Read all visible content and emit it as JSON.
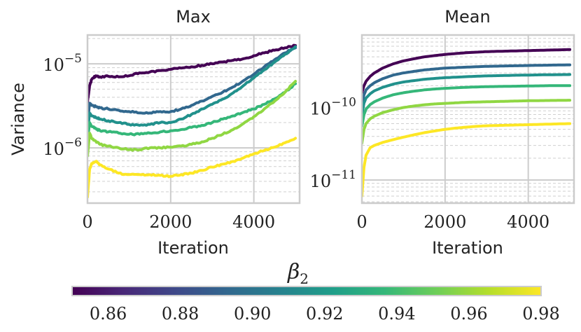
{
  "chart_data": [
    {
      "type": "line",
      "title": "Max",
      "xlabel": "Iteration",
      "ylabel": "Variance",
      "yscale": "log",
      "xlim": [
        0,
        5100
      ],
      "ylim": [
        2.2e-07,
        2.2e-05
      ],
      "xticks": [
        {
          "value": 0,
          "label": "0"
        },
        {
          "value": 2000,
          "label": "2000"
        },
        {
          "value": 4000,
          "label": "4000"
        }
      ],
      "yticks": [
        {
          "value": 1e-05,
          "base": "10",
          "exp": "−5"
        },
        {
          "value": 1e-06,
          "base": "10",
          "exp": "−6"
        }
      ],
      "x": [
        0,
        50,
        100,
        200,
        300,
        500,
        750,
        1000,
        1250,
        1500,
        1750,
        2000,
        2250,
        2500,
        2750,
        3000,
        3250,
        3500,
        3750,
        4000,
        4250,
        4500,
        4750,
        5000
      ],
      "series": [
        {
          "name": "0.86",
          "color": "#440154",
          "values": [
            3.5e-06,
            5.5e-06,
            6.5e-06,
            7.2e-06,
            7e-06,
            7.1e-06,
            7e-06,
            7.2e-06,
            7.8e-06,
            8e-06,
            8.3e-06,
            8.6e-06,
            8.9e-06,
            9.2e-06,
            9.6e-06,
            1e-05,
            1.05e-05,
            1.1e-05,
            1.15e-05,
            1.25e-05,
            1.35e-05,
            1.45e-05,
            1.55e-05,
            1.65e-05
          ]
        },
        {
          "name": "0.88",
          "color": "#31688e",
          "values": [
            1.9e-06,
            3.4e-06,
            3.2e-06,
            3.1e-06,
            3e-06,
            2.9e-06,
            2.8e-06,
            2.7e-06,
            2.6e-06,
            2.6e-06,
            2.7e-06,
            2.7e-06,
            2.9e-06,
            3.2e-06,
            3.6e-06,
            4.1e-06,
            4.6e-06,
            5.3e-06,
            6.3e-06,
            7.5e-06,
            9.2e-06,
            1.12e-05,
            1.35e-05,
            1.55e-05
          ]
        },
        {
          "name": "0.90",
          "color": "#21918c",
          "values": [
            1.6e-06,
            2.6e-06,
            2.4e-06,
            2.3e-06,
            2.2e-06,
            2.1e-06,
            2e-06,
            1.9e-06,
            1.85e-06,
            1.9e-06,
            2e-06,
            2e-06,
            2.2e-06,
            2.5e-06,
            2.9e-06,
            3.3e-06,
            3.8e-06,
            4.5e-06,
            5.5e-06,
            6.8e-06,
            8.5e-06,
            1.05e-05,
            1.3e-05,
            1.6e-05
          ]
        },
        {
          "name": "0.92",
          "color": "#35b779",
          "values": [
            1.2e-06,
            2e-06,
            1.8e-06,
            1.7e-06,
            1.6e-06,
            1.55e-06,
            1.5e-06,
            1.45e-06,
            1.45e-06,
            1.5e-06,
            1.55e-06,
            1.6e-06,
            1.65e-06,
            1.75e-06,
            1.85e-06,
            2e-06,
            2.2e-06,
            2.4e-06,
            2.65e-06,
            2.9e-06,
            3.3e-06,
            3.8e-06,
            4.6e-06,
            5.8e-06
          ]
        },
        {
          "name": "0.94",
          "color": "#90d743",
          "values": [
            8e-07,
            1.5e-06,
            1.3e-06,
            1.2e-06,
            1.1e-06,
            1.05e-06,
            1e-06,
            9.5e-07,
            9.5e-07,
            1e-06,
            1e-06,
            1.02e-06,
            1.05e-06,
            1.1e-06,
            1.18e-06,
            1.3e-06,
            1.45e-06,
            1.65e-06,
            1.95e-06,
            2.35e-06,
            2.9e-06,
            3.6e-06,
            4.6e-06,
            6.2e-06
          ]
        },
        {
          "name": "0.98",
          "color": "#fde725",
          "values": [
            2.6e-07,
            5.5e-07,
            6.5e-07,
            6.9e-07,
            6.3e-07,
            5.6e-07,
            5e-07,
            4.8e-07,
            4.8e-07,
            4.8e-07,
            4.7e-07,
            4.6e-07,
            4.8e-07,
            5e-07,
            5.4e-07,
            5.9e-07,
            6.4e-07,
            6.9e-07,
            7.6e-07,
            8.5e-07,
            9.3e-07,
            1.02e-06,
            1.15e-06,
            1.3e-06
          ]
        }
      ]
    },
    {
      "type": "line",
      "title": "Mean",
      "xlabel": "Iteration",
      "ylabel": "",
      "yscale": "log",
      "xlim": [
        0,
        5100
      ],
      "ylim": [
        4.8e-12,
        1e-09
      ],
      "xticks": [
        {
          "value": 0,
          "label": "0"
        },
        {
          "value": 2000,
          "label": "2000"
        },
        {
          "value": 4000,
          "label": "4000"
        }
      ],
      "yticks": [
        {
          "value": 1e-10,
          "base": "10",
          "exp": "−10"
        },
        {
          "value": 1e-11,
          "base": "10",
          "exp": "−11"
        }
      ],
      "x": [
        0,
        50,
        100,
        200,
        300,
        500,
        750,
        1000,
        1250,
        1500,
        1750,
        2000,
        2250,
        2500,
        2750,
        3000,
        3250,
        3500,
        3750,
        4000,
        4250,
        4500,
        4750,
        5000
      ],
      "series": [
        {
          "name": "0.86",
          "color": "#440154",
          "values": [
            1.6e-10,
            2e-10,
            2.3e-10,
            2.7e-10,
            3e-10,
            3.5e-10,
            4e-10,
            4.4e-10,
            4.7e-10,
            5e-10,
            5.2e-10,
            5.4e-10,
            5.55e-10,
            5.7e-10,
            5.8e-10,
            5.9e-10,
            5.95e-10,
            6e-10,
            6.05e-10,
            6.1e-10,
            6.15e-10,
            6.2e-10,
            6.25e-10,
            6.3e-10
          ]
        },
        {
          "name": "0.88",
          "color": "#31688e",
          "values": [
            1.1e-10,
            1.5e-10,
            1.75e-10,
            2e-10,
            2.2e-10,
            2.5e-10,
            2.8e-10,
            3e-10,
            3.15e-10,
            3.3e-10,
            3.4e-10,
            3.5e-10,
            3.55e-10,
            3.6e-10,
            3.65e-10,
            3.7e-10,
            3.72e-10,
            3.75e-10,
            3.77e-10,
            3.8e-10,
            3.82e-10,
            3.84e-10,
            3.86e-10,
            3.88e-10
          ]
        },
        {
          "name": "0.90",
          "color": "#21918c",
          "values": [
            8e-11,
            1.15e-10,
            1.35e-10,
            1.55e-10,
            1.7e-10,
            1.9e-10,
            2.1e-10,
            2.25e-10,
            2.35e-10,
            2.45e-10,
            2.52e-10,
            2.58e-10,
            2.62e-10,
            2.66e-10,
            2.7e-10,
            2.73e-10,
            2.75e-10,
            2.77e-10,
            2.79e-10,
            2.8e-10,
            2.82e-10,
            2.83e-10,
            2.84e-10,
            2.85e-10
          ]
        },
        {
          "name": "0.92",
          "color": "#35b779",
          "values": [
            5.5e-11,
            8e-11,
            9.5e-11,
            1.1e-10,
            1.2e-10,
            1.35e-10,
            1.5e-10,
            1.6e-10,
            1.68e-10,
            1.75e-10,
            1.8e-10,
            1.84e-10,
            1.87e-10,
            1.9e-10,
            1.92e-10,
            1.94e-10,
            1.95e-10,
            1.96e-10,
            1.97e-10,
            1.98e-10,
            1.99e-10,
            2e-10,
            2e-10,
            2e-10
          ]
        },
        {
          "name": "0.94",
          "color": "#90d743",
          "values": [
            3.2e-11,
            5e-11,
            6e-11,
            7e-11,
            7.6e-11,
            8.5e-11,
            9.3e-11,
            1e-10,
            1.05e-10,
            1.09e-10,
            1.12e-10,
            1.14e-10,
            1.16e-10,
            1.18e-10,
            1.19e-10,
            1.2e-10,
            1.21e-10,
            1.22e-10,
            1.23e-10,
            1.24e-10,
            1.245e-10,
            1.25e-10,
            1.255e-10,
            1.26e-10
          ]
        },
        {
          "name": "0.98",
          "color": "#fde725",
          "values": [
            6e-12,
            1.5e-11,
            2.2e-11,
            2.8e-11,
            3e-11,
            3.3e-11,
            3.6e-11,
            3.9e-11,
            4.2e-11,
            4.5e-11,
            4.75e-11,
            5e-11,
            5.2e-11,
            5.35e-11,
            5.5e-11,
            5.6e-11,
            5.65e-11,
            5.7e-11,
            5.75e-11,
            5.8e-11,
            5.85e-11,
            5.9e-11,
            5.95e-11,
            6e-11
          ]
        }
      ]
    }
  ],
  "colorbar": {
    "label_symbol": "β",
    "label_sub": "2",
    "min": 0.85,
    "max": 0.98,
    "ticks": [
      {
        "value": 0.86,
        "label": "0.86"
      },
      {
        "value": 0.88,
        "label": "0.88"
      },
      {
        "value": 0.9,
        "label": "0.90"
      },
      {
        "value": 0.92,
        "label": "0.92"
      },
      {
        "value": 0.94,
        "label": "0.94"
      },
      {
        "value": 0.96,
        "label": "0.96"
      },
      {
        "value": 0.98,
        "label": "0.98"
      }
    ],
    "colormap": [
      "#440154",
      "#482878",
      "#3e4989",
      "#31688e",
      "#26828e",
      "#1f9e89",
      "#35b779",
      "#6ece58",
      "#b5de2b",
      "#fde725"
    ]
  }
}
